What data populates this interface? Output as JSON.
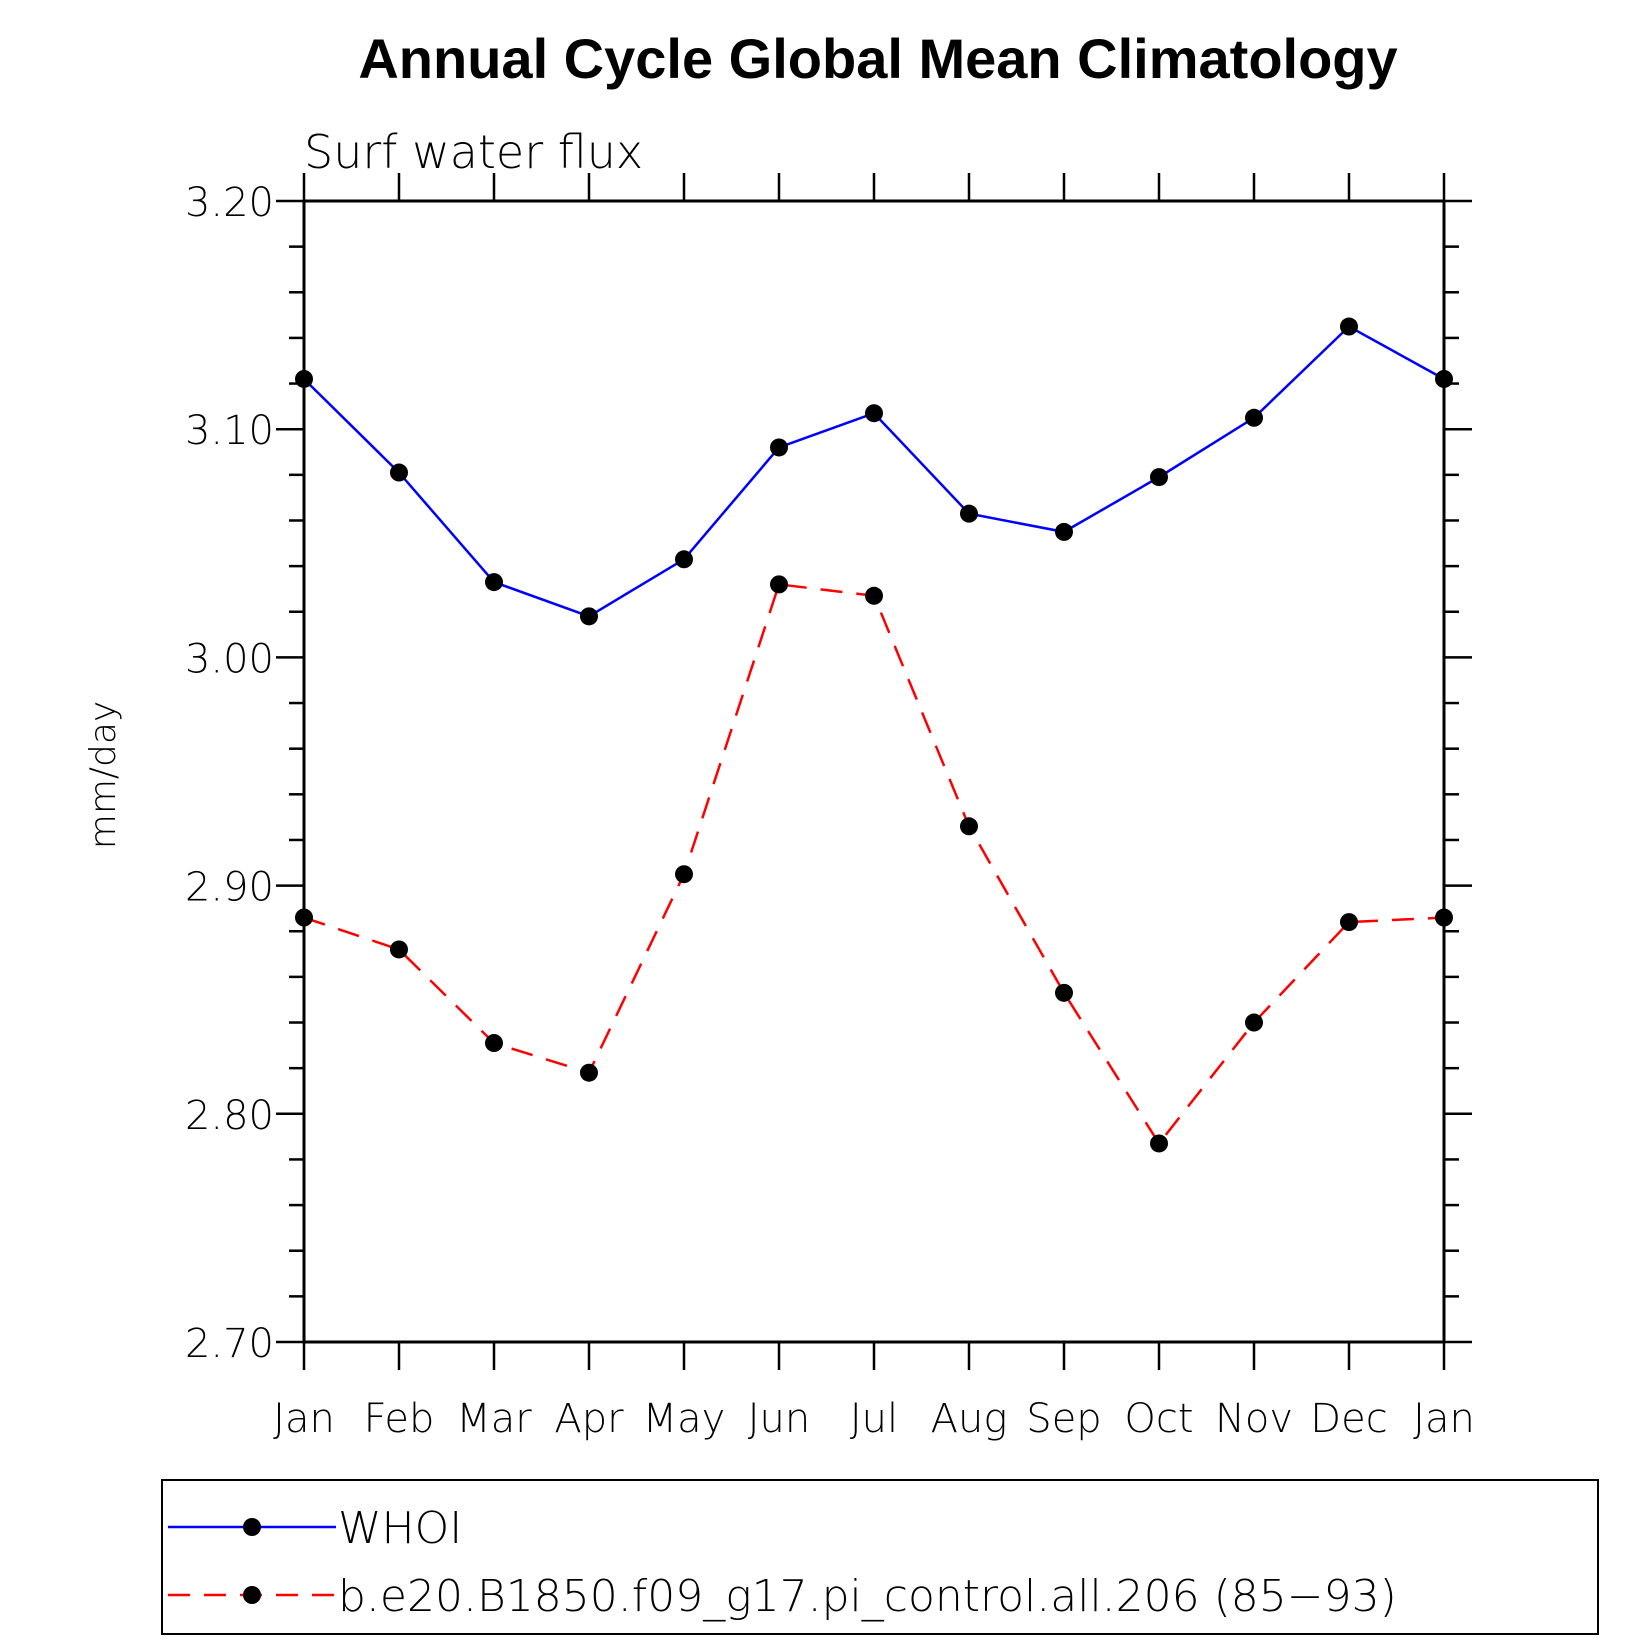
{
  "chart_data": {
    "type": "line",
    "title": "Annual Cycle Global Mean Climatology",
    "subtitle": "Surf water flux",
    "xlabel": "",
    "ylabel": "mm/day",
    "categories": [
      "Jan",
      "Feb",
      "Mar",
      "Apr",
      "May",
      "Jun",
      "Jul",
      "Aug",
      "Sep",
      "Oct",
      "Nov",
      "Dec",
      "Jan"
    ],
    "ylim": [
      2.7,
      3.2
    ],
    "yticks": [
      "2.70",
      "2.80",
      "2.90",
      "3.00",
      "3.10",
      "3.20"
    ],
    "grid": false,
    "legend_position": "bottom",
    "series": [
      {
        "name": "WHOI",
        "color": "#0000ff",
        "line_style": "solid",
        "marker": "filled-circle",
        "values": [
          3.122,
          3.081,
          3.033,
          3.018,
          3.043,
          3.092,
          3.107,
          3.063,
          3.055,
          3.079,
          3.105,
          3.145,
          3.122
        ]
      },
      {
        "name": "b.e20.B1850.f09_g17.pi_control.all.206 (85−93)",
        "color": "#ff0000",
        "line_style": "dashed",
        "marker": "filled-circle",
        "values": [
          2.886,
          2.872,
          2.831,
          2.818,
          2.905,
          3.032,
          3.027,
          2.926,
          2.853,
          2.787,
          2.84,
          2.884,
          2.886
        ]
      }
    ]
  }
}
